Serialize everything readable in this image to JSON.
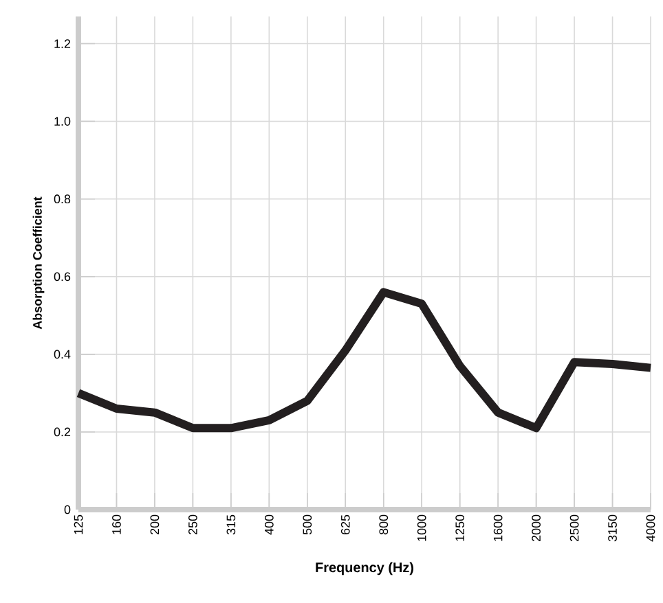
{
  "chart_data": {
    "type": "line",
    "xlabel": "Frequency (Hz)",
    "ylabel": "Absorption Coefficient",
    "categories": [
      "125",
      "160",
      "200",
      "250",
      "315",
      "400",
      "500",
      "625",
      "800",
      "1000",
      "1250",
      "1600",
      "2000",
      "2500",
      "3150",
      "4000"
    ],
    "series": [
      {
        "color": "#231f20",
        "values": [
          0.3,
          0.26,
          0.25,
          0.21,
          0.21,
          0.23,
          0.28,
          0.41,
          0.56,
          0.53,
          0.37,
          0.25,
          0.21,
          0.38,
          0.375,
          0.365
        ]
      }
    ],
    "ylim": [
      0,
      1.27
    ],
    "yticks": [
      0,
      0.2,
      0.4,
      0.6,
      0.8,
      {
        "value": 1,
        "label": "1.0"
      },
      1.2
    ],
    "grid": true,
    "marker": "none",
    "line_style": "solid"
  }
}
